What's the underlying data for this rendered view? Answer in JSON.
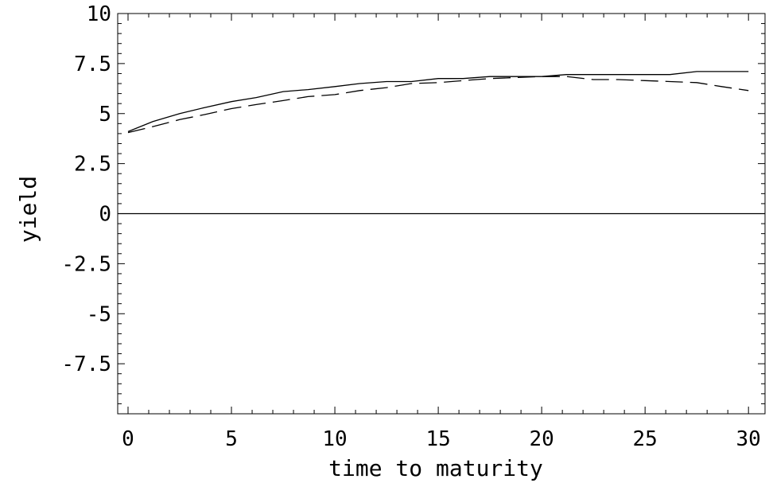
{
  "chart_data": {
    "type": "line",
    "title": "",
    "xlabel": "time to maturity",
    "ylabel": "yield",
    "xlim": [
      -0.5,
      30.8
    ],
    "ylim": [
      -10,
      10
    ],
    "x_ticks": [
      0,
      5,
      10,
      15,
      20,
      25,
      30
    ],
    "x_tick_labels": [
      "0",
      "5",
      "10",
      "15",
      "20",
      "25",
      "30"
    ],
    "y_ticks": [
      10,
      7.5,
      5,
      2.5,
      0,
      -2.5,
      -5,
      -7.5
    ],
    "y_tick_labels": [
      "10",
      "7.5",
      "5",
      "2.5",
      "0",
      "-2.5",
      "-5",
      "-7.5"
    ],
    "grid": false,
    "legend": "none",
    "series": [
      {
        "style": "solid",
        "color": "#000000",
        "x": [
          0,
          1.2,
          2.5,
          3.7,
          5,
          6.2,
          7.5,
          8.7,
          10,
          11.2,
          12.5,
          13.7,
          15,
          16.2,
          17.5,
          18.7,
          20,
          21.2,
          22.5,
          23.7,
          25,
          26.2,
          27.5,
          28.7,
          30
        ],
        "y": [
          4.1,
          4.6,
          5.0,
          5.3,
          5.6,
          5.8,
          6.1,
          6.2,
          6.35,
          6.5,
          6.6,
          6.6,
          6.75,
          6.75,
          6.85,
          6.85,
          6.85,
          6.95,
          6.95,
          6.95,
          6.95,
          6.95,
          7.1,
          7.1,
          7.1
        ]
      },
      {
        "style": "dashed",
        "color": "#000000",
        "x": [
          0,
          1.2,
          2.5,
          3.7,
          5,
          6.2,
          7.5,
          8.7,
          10,
          11.2,
          12.5,
          13.7,
          15,
          16.2,
          17.5,
          18.7,
          20,
          21.2,
          22.5,
          23.7,
          25,
          26.2,
          27.5,
          28.7,
          30
        ],
        "y": [
          4.05,
          4.35,
          4.7,
          4.95,
          5.25,
          5.45,
          5.65,
          5.85,
          5.95,
          6.15,
          6.3,
          6.5,
          6.55,
          6.65,
          6.75,
          6.8,
          6.85,
          6.85,
          6.7,
          6.7,
          6.65,
          6.6,
          6.55,
          6.35,
          6.15
        ]
      }
    ]
  }
}
